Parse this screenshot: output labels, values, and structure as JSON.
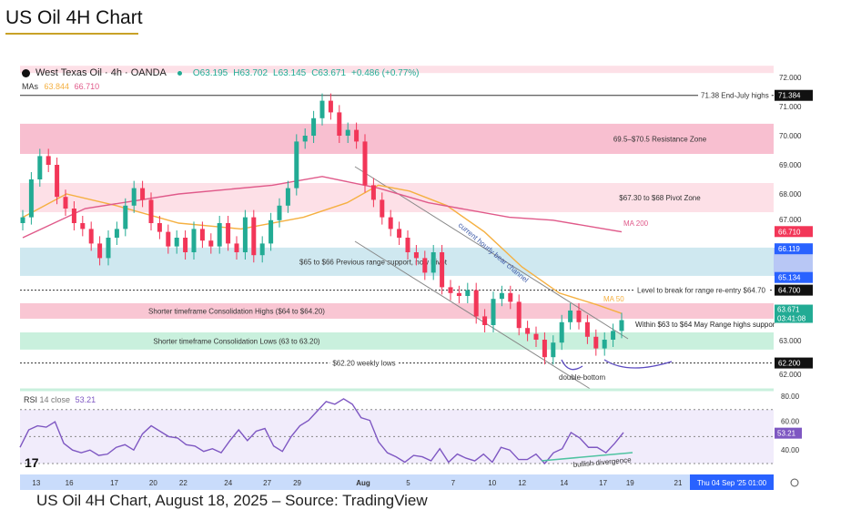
{
  "title": "US Oil 4H Chart",
  "caption": "US Oil 4H Chart, August 18, 2025 – Source: TradingView",
  "header": {
    "symbol": "West Texas Oil · 4h · OANDA",
    "o": "O63.195",
    "h": "H63.702",
    "l": "L63.145",
    "c": "C63.671",
    "change": "+0.486 (+0.77%)"
  },
  "mas": {
    "label": "MAs",
    "ma50": "63.844",
    "ma200": "66.710"
  },
  "rsi_header": {
    "label": "RSI",
    "params": "14 close",
    "value": "53.21"
  },
  "colors": {
    "up": "#22ab94",
    "down": "#f23658",
    "ma50": "#f5b041",
    "ma200": "#e05a8a",
    "rsi": "#7e57c2"
  },
  "chart_data": [
    {
      "type": "candlestick",
      "title": "West Texas Oil · 4h · OANDA",
      "ylim": [
        61.7,
        72.4
      ],
      "y_ticks": [
        "72.000",
        "71.000",
        "70.000",
        "69.000",
        "68.000",
        "67.000",
        "63.000",
        "62.000"
      ],
      "y_tick_values": [
        72,
        71,
        70,
        69,
        68,
        67,
        63,
        62
      ],
      "x_ticks": [
        "13",
        "16",
        "17",
        "20",
        "22",
        "24",
        "27",
        "29",
        "Aug",
        "5",
        "7",
        "10",
        "12",
        "14",
        "17",
        "19",
        "21"
      ],
      "x_tick_index": [
        1.5,
        7,
        14.5,
        21,
        26,
        33.5,
        40,
        45,
        56,
        63.5,
        71,
        77.5,
        82.5,
        89.5,
        96,
        100.5,
        108.5
      ],
      "x_total": 112,
      "closes": [
        67.2,
        68.5,
        69.3,
        69.0,
        67.9,
        67.5,
        67.0,
        66.8,
        66.3,
        65.8,
        66.5,
        66.8,
        67.6,
        68.2,
        67.8,
        67.0,
        66.7,
        66.2,
        66.5,
        66.0,
        66.8,
        66.4,
        66.2,
        67.0,
        66.3,
        66.0,
        67.2,
        65.9,
        66.3,
        67.1,
        67.6,
        68.2,
        69.8,
        70.0,
        70.6,
        71.2,
        70.8,
        70.0,
        70.2,
        69.8,
        68.3,
        67.8,
        67.2,
        66.8,
        66.5,
        66.0,
        65.8,
        65.3,
        66.0,
        64.8,
        64.6,
        64.5,
        64.7,
        63.8,
        63.5,
        64.4,
        64.6,
        64.3,
        63.4,
        63.2,
        63.0,
        62.4,
        62.9,
        63.6,
        64.0,
        63.6,
        63.1,
        62.7,
        63.0,
        63.3,
        63.671
      ],
      "ma50": [
        [
          0,
          67.2
        ],
        [
          7,
          68.0
        ],
        [
          15,
          67.6
        ],
        [
          25,
          67.0
        ],
        [
          35,
          66.8
        ],
        [
          45,
          67.2
        ],
        [
          52,
          67.7
        ],
        [
          57,
          68.3
        ],
        [
          62,
          68.1
        ],
        [
          68,
          67.6
        ],
        [
          74,
          66.7
        ],
        [
          80,
          65.5
        ],
        [
          86,
          64.6
        ],
        [
          92,
          64.2
        ],
        [
          96,
          63.9
        ]
      ],
      "ma200": [
        [
          0,
          66.5
        ],
        [
          10,
          67.5
        ],
        [
          25,
          68.0
        ],
        [
          40,
          68.3
        ],
        [
          48,
          68.6
        ],
        [
          57,
          68.2
        ],
        [
          65,
          67.7
        ],
        [
          78,
          67.2
        ],
        [
          85,
          67.1
        ],
        [
          96,
          66.7
        ]
      ],
      "zones": [
        {
          "label": "69.5–$70.5 Resistance Zone",
          "from": 69.375,
          "to": 70.41,
          "color": "#f8bfd0"
        },
        {
          "label": "$67.30 to $68 Pivot Zone",
          "from": 67.375,
          "to": 68.375,
          "color": "#fde0e7"
        },
        {
          "label": "$65 to $66 Previous range support, now Pivot",
          "from": 65.19,
          "to": 66.16,
          "color": "#cfe8f0"
        },
        {
          "label": "Shorter timeframe Consolidation Highs ($64 to $64.20)",
          "from": 63.72,
          "to": 64.25,
          "color": "#f9c6d3"
        },
        {
          "label": "Shorter timeframe Consolidation Lows (63 to 63.20)",
          "from": 62.66,
          "to": 63.25,
          "color": "#c9f0dd"
        }
      ],
      "levels": [
        {
          "label": "71.38 End-July highs",
          "value": 71.384,
          "tag": "71.384",
          "style": "solid"
        },
        {
          "label": "Level to break for range re-entry $64.70",
          "value": 64.7,
          "tag": "64.700",
          "style": "dotted"
        },
        {
          "label": "$62.20 weekly lows",
          "value": 62.2,
          "tag": "62.200",
          "style": "dotted"
        }
      ],
      "price_tags": [
        {
          "text": "66.710",
          "value": 66.71,
          "color": "#f23658"
        },
        {
          "text": "66.119",
          "value": 66.119,
          "color": "#2962ff"
        },
        {
          "text": "65.134",
          "value": 65.134,
          "color": "#2962ff"
        },
        {
          "text": "63.844",
          "value": 63.844,
          "color": "#f5a623"
        }
      ],
      "last_price": {
        "value": "63.671",
        "countdown": "03:41:08"
      },
      "annotations": {
        "ma200": "MA 200",
        "ma50": "MA 50",
        "channel": "current hourly bear channel",
        "double_bottom": "double-bottom",
        "within": "Within $63 to $64 May Range highs suppor",
        "divergence": "bullish divergence"
      },
      "crosshair_date": "Thu 04 Sep '25  01:00"
    },
    {
      "type": "line",
      "title": "RSI 14 close",
      "ylim": [
        20,
        85
      ],
      "y_ticks": [
        "80.00",
        "60.00",
        "40.00"
      ],
      "y_tick_values": [
        80,
        60,
        40
      ],
      "bands": [
        70,
        50,
        30
      ],
      "last": "53.21",
      "values": [
        42,
        55,
        58,
        57,
        61,
        45,
        40,
        38,
        40,
        36,
        37,
        42,
        44,
        40,
        52,
        58,
        54,
        50,
        49,
        44,
        43,
        39,
        41,
        38,
        47,
        55,
        47,
        54,
        56,
        43,
        39,
        50,
        58,
        62,
        69,
        76,
        74,
        78,
        74,
        64,
        62,
        46,
        38,
        35,
        31,
        36,
        35,
        32,
        41,
        31,
        37,
        34,
        32,
        37,
        31,
        42,
        40,
        33,
        33,
        37,
        30,
        38,
        41,
        53,
        49,
        42,
        42,
        38,
        45,
        53
      ]
    }
  ]
}
